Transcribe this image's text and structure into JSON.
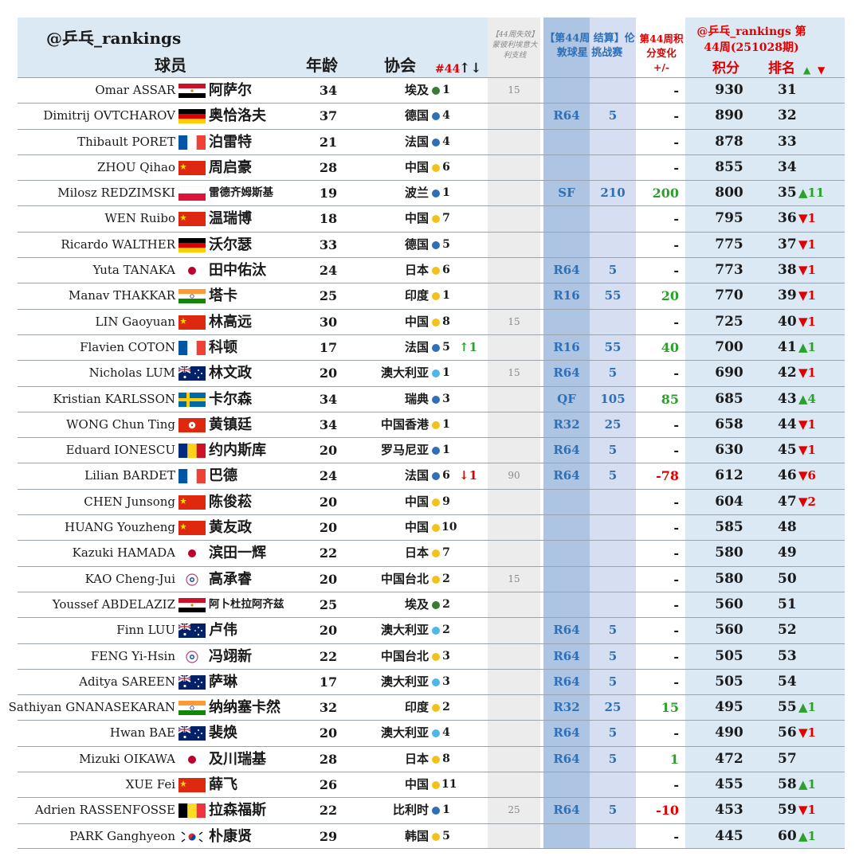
{
  "header": {
    "title": "@乒乓_rankings",
    "player": "球员",
    "age": "年龄",
    "association": "协会",
    "rank44": "#44",
    "rank44_arrows": "↑↓",
    "expire_note": "【44周失效】蒙彼利埃意大利支线",
    "wtt_title": "【第44周 结算】伦敦球星 挑战赛",
    "change_title": "第44周积分变化 +/-",
    "brand": "@乒乓_rankings 第44周(251028期)",
    "points": "积分",
    "rank": "排名",
    "up_icon": "▲",
    "down_icon": "▼"
  },
  "colors": {
    "up": "#2aa22a",
    "down": "#e00000",
    "blue": "#2f6fb5",
    "europe": "#2f6fb5",
    "asia": "#f2c21b",
    "oceania": "#4fb6e8",
    "africa": "#3a7a33"
  },
  "rows": [
    {
      "en": "Omar ASSAR",
      "flag": "egypt",
      "cn": "阿萨尔",
      "age": "34",
      "assoc": "埃及",
      "dot": "africa",
      "arank": "1",
      "move": "",
      "expire": "15",
      "round": "",
      "pts": "",
      "change": "-",
      "score": "930",
      "rank": "31",
      "trend": ""
    },
    {
      "en": "Dimitrij OVTCHAROV",
      "flag": "germany",
      "cn": "奥恰洛夫",
      "age": "37",
      "assoc": "德国",
      "dot": "europe",
      "arank": "4",
      "move": "",
      "expire": "",
      "round": "R64",
      "pts": "5",
      "change": "-",
      "score": "890",
      "rank": "32",
      "trend": ""
    },
    {
      "en": "Thibault PORET",
      "flag": "france",
      "cn": "泊雷特",
      "age": "21",
      "assoc": "法国",
      "dot": "europe",
      "arank": "4",
      "move": "",
      "expire": "",
      "round": "",
      "pts": "",
      "change": "-",
      "score": "878",
      "rank": "33",
      "trend": ""
    },
    {
      "en": "ZHOU Qihao",
      "flag": "china",
      "cn": "周启豪",
      "age": "28",
      "assoc": "中国",
      "dot": "asia",
      "arank": "6",
      "move": "",
      "expire": "",
      "round": "",
      "pts": "",
      "change": "-",
      "score": "855",
      "rank": "34",
      "trend": ""
    },
    {
      "en": "Milosz REDZIMSKI",
      "flag": "poland",
      "cn": "雷德齐姆斯基",
      "age": "19",
      "assoc": "波兰",
      "dot": "europe",
      "arank": "1",
      "move": "",
      "expire": "",
      "round": "SF",
      "pts": "210",
      "change": "200",
      "score": "800",
      "rank": "35",
      "trend": "▲11"
    },
    {
      "en": "WEN Ruibo",
      "flag": "china",
      "cn": "温瑞博",
      "age": "18",
      "assoc": "中国",
      "dot": "asia",
      "arank": "7",
      "move": "",
      "expire": "",
      "round": "",
      "pts": "",
      "change": "-",
      "score": "795",
      "rank": "36",
      "trend": "▼1"
    },
    {
      "en": "Ricardo WALTHER",
      "flag": "germany",
      "cn": "沃尔瑟",
      "age": "33",
      "assoc": "德国",
      "dot": "europe",
      "arank": "5",
      "move": "",
      "expire": "",
      "round": "",
      "pts": "",
      "change": "-",
      "score": "775",
      "rank": "37",
      "trend": "▼1"
    },
    {
      "en": "Yuta TANAKA",
      "flag": "japan",
      "cn": "田中佑汰",
      "age": "24",
      "assoc": "日本",
      "dot": "asia",
      "arank": "6",
      "move": "",
      "expire": "",
      "round": "R64",
      "pts": "5",
      "change": "-",
      "score": "773",
      "rank": "38",
      "trend": "▼1"
    },
    {
      "en": "Manav THAKKAR",
      "flag": "india",
      "cn": "塔卡",
      "age": "25",
      "assoc": "印度",
      "dot": "asia",
      "arank": "1",
      "move": "",
      "expire": "",
      "round": "R16",
      "pts": "55",
      "change": "20",
      "score": "770",
      "rank": "39",
      "trend": "▼1"
    },
    {
      "en": "LIN Gaoyuan",
      "flag": "china",
      "cn": "林高远",
      "age": "30",
      "assoc": "中国",
      "dot": "asia",
      "arank": "8",
      "move": "",
      "expire": "15",
      "round": "",
      "pts": "",
      "change": "-",
      "score": "725",
      "rank": "40",
      "trend": "▼1"
    },
    {
      "en": "Flavien COTON",
      "flag": "france",
      "cn": "科顿",
      "age": "17",
      "assoc": "法国",
      "dot": "europe",
      "arank": "5",
      "move": "↑1",
      "expire": "",
      "round": "R16",
      "pts": "55",
      "change": "40",
      "score": "700",
      "rank": "41",
      "trend": "▲1"
    },
    {
      "en": "Nicholas LUM",
      "flag": "australia",
      "cn": "林文政",
      "age": "20",
      "assoc": "澳大利亚",
      "dot": "oceania",
      "arank": "1",
      "move": "",
      "expire": "15",
      "round": "R64",
      "pts": "5",
      "change": "-",
      "score": "690",
      "rank": "42",
      "trend": "▼1"
    },
    {
      "en": "Kristian KARLSSON",
      "flag": "sweden",
      "cn": "卡尔森",
      "age": "34",
      "assoc": "瑞典",
      "dot": "europe",
      "arank": "3",
      "move": "",
      "expire": "",
      "round": "QF",
      "pts": "105",
      "change": "85",
      "score": "685",
      "rank": "43",
      "trend": "▲4"
    },
    {
      "en": "WONG Chun Ting",
      "flag": "hongkong",
      "cn": "黄镇廷",
      "age": "34",
      "assoc": "中国香港",
      "dot": "asia",
      "arank": "1",
      "move": "",
      "expire": "",
      "round": "R32",
      "pts": "25",
      "change": "-",
      "score": "658",
      "rank": "44",
      "trend": "▼1"
    },
    {
      "en": "Eduard IONESCU",
      "flag": "romania",
      "cn": "约内斯库",
      "age": "20",
      "assoc": "罗马尼亚",
      "dot": "europe",
      "arank": "1",
      "move": "",
      "expire": "",
      "round": "R64",
      "pts": "5",
      "change": "-",
      "score": "630",
      "rank": "45",
      "trend": "▼1"
    },
    {
      "en": "Lilian BARDET",
      "flag": "france",
      "cn": "巴德",
      "age": "24",
      "assoc": "法国",
      "dot": "europe",
      "arank": "6",
      "move": "↓1",
      "expire": "90",
      "round": "R64",
      "pts": "5",
      "change": "-78",
      "score": "612",
      "rank": "46",
      "trend": "▼6"
    },
    {
      "en": "CHEN Junsong",
      "flag": "china",
      "cn": "陈俊菘",
      "age": "20",
      "assoc": "中国",
      "dot": "asia",
      "arank": "9",
      "move": "",
      "expire": "",
      "round": "",
      "pts": "",
      "change": "-",
      "score": "604",
      "rank": "47",
      "trend": "▼2"
    },
    {
      "en": "HUANG Youzheng",
      "flag": "china",
      "cn": "黄友政",
      "age": "20",
      "assoc": "中国",
      "dot": "asia",
      "arank": "10",
      "move": "",
      "expire": "",
      "round": "",
      "pts": "",
      "change": "-",
      "score": "585",
      "rank": "48",
      "trend": ""
    },
    {
      "en": "Kazuki HAMADA",
      "flag": "japan",
      "cn": "滨田一辉",
      "age": "22",
      "assoc": "日本",
      "dot": "asia",
      "arank": "7",
      "move": "",
      "expire": "",
      "round": "",
      "pts": "",
      "change": "-",
      "score": "580",
      "rank": "49",
      "trend": ""
    },
    {
      "en": "KAO Cheng-Jui",
      "flag": "tpe",
      "cn": "高承睿",
      "age": "20",
      "assoc": "中国台北",
      "dot": "asia",
      "arank": "2",
      "move": "",
      "expire": "15",
      "round": "",
      "pts": "",
      "change": "-",
      "score": "580",
      "rank": "50",
      "trend": ""
    },
    {
      "en": "Youssef ABDELAZIZ",
      "flag": "egypt",
      "cn": "阿卜杜拉阿齐兹",
      "age": "25",
      "assoc": "埃及",
      "dot": "africa",
      "arank": "2",
      "move": "",
      "expire": "",
      "round": "",
      "pts": "",
      "change": "-",
      "score": "560",
      "rank": "51",
      "trend": ""
    },
    {
      "en": "Finn LUU",
      "flag": "australia",
      "cn": "卢伟",
      "age": "20",
      "assoc": "澳大利亚",
      "dot": "oceania",
      "arank": "2",
      "move": "",
      "expire": "",
      "round": "R64",
      "pts": "5",
      "change": "-",
      "score": "560",
      "rank": "52",
      "trend": ""
    },
    {
      "en": "FENG Yi-Hsin",
      "flag": "tpe",
      "cn": "冯翊新",
      "age": "22",
      "assoc": "中国台北",
      "dot": "asia",
      "arank": "3",
      "move": "",
      "expire": "",
      "round": "R64",
      "pts": "5",
      "change": "-",
      "score": "505",
      "rank": "53",
      "trend": ""
    },
    {
      "en": "Aditya SAREEN",
      "flag": "australia",
      "cn": "萨琳",
      "age": "17",
      "assoc": "澳大利亚",
      "dot": "oceania",
      "arank": "3",
      "move": "",
      "expire": "",
      "round": "R64",
      "pts": "5",
      "change": "-",
      "score": "505",
      "rank": "54",
      "trend": ""
    },
    {
      "en": "Sathiyan GNANASEKARAN",
      "flag": "india",
      "cn": "纳纳塞卡然",
      "age": "32",
      "assoc": "印度",
      "dot": "asia",
      "arank": "2",
      "move": "",
      "expire": "",
      "round": "R32",
      "pts": "25",
      "change": "15",
      "score": "495",
      "rank": "55",
      "trend": "▲1"
    },
    {
      "en": "Hwan BAE",
      "flag": "australia",
      "cn": "裴焕",
      "age": "20",
      "assoc": "澳大利亚",
      "dot": "oceania",
      "arank": "4",
      "move": "",
      "expire": "",
      "round": "R64",
      "pts": "5",
      "change": "-",
      "score": "490",
      "rank": "56",
      "trend": "▼1"
    },
    {
      "en": "Mizuki OIKAWA",
      "flag": "japan",
      "cn": "及川瑞基",
      "age": "28",
      "assoc": "日本",
      "dot": "asia",
      "arank": "8",
      "move": "",
      "expire": "",
      "round": "R64",
      "pts": "5",
      "change": "1",
      "score": "472",
      "rank": "57",
      "trend": ""
    },
    {
      "en": "XUE Fei",
      "flag": "china",
      "cn": "薛飞",
      "age": "26",
      "assoc": "中国",
      "dot": "asia",
      "arank": "11",
      "move": "",
      "expire": "",
      "round": "",
      "pts": "",
      "change": "-",
      "score": "455",
      "rank": "58",
      "trend": "▲1"
    },
    {
      "en": "Adrien RASSENFOSSE",
      "flag": "belgium",
      "cn": "拉森福斯",
      "age": "22",
      "assoc": "比利时",
      "dot": "europe",
      "arank": "1",
      "move": "",
      "expire": "25",
      "round": "R64",
      "pts": "5",
      "change": "-10",
      "score": "453",
      "rank": "59",
      "trend": "▼1"
    },
    {
      "en": "PARK Ganghyeon",
      "flag": "korea",
      "cn": "朴康贤",
      "age": "29",
      "assoc": "韩国",
      "dot": "asia",
      "arank": "5",
      "move": "",
      "expire": "",
      "round": "",
      "pts": "",
      "change": "-",
      "score": "445",
      "rank": "60",
      "trend": "▲1"
    }
  ]
}
